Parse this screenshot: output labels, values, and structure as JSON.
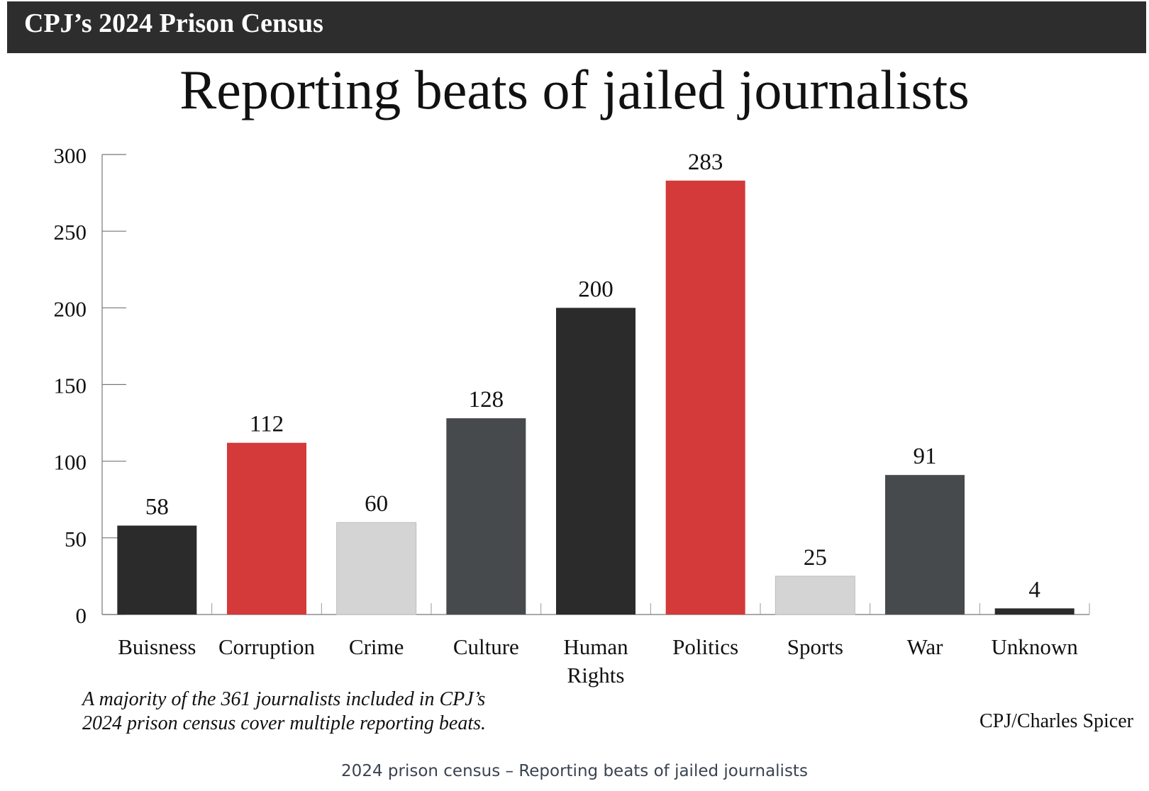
{
  "header": {
    "kicker": "CPJ’s 2024 Prison Census"
  },
  "chart_data": {
    "type": "bar",
    "title": "Reporting beats of jailed journalists",
    "categories": [
      [
        "Buisness"
      ],
      [
        "Corruption"
      ],
      [
        "Crime"
      ],
      [
        "Culture"
      ],
      [
        "Human",
        "Rights"
      ],
      [
        "Politics"
      ],
      [
        "Sports"
      ],
      [
        "War"
      ],
      [
        "Unknown"
      ]
    ],
    "values": [
      58,
      112,
      60,
      128,
      200,
      283,
      25,
      91,
      4
    ],
    "data_labels": [
      "58",
      "112",
      "60",
      "128",
      "200",
      "283",
      "25",
      "91",
      "4"
    ],
    "bar_colors": [
      "#2b2b2b",
      "#d43a3a",
      "#d4d4d4",
      "#474a4d",
      "#2b2b2b",
      "#d43a3a",
      "#d4d4d4",
      "#474a4d",
      "#2b2b2b"
    ],
    "ylim": [
      0,
      300
    ],
    "yticks": [
      0,
      50,
      100,
      150,
      200,
      250,
      300
    ],
    "xlabel": "",
    "ylabel": "",
    "grid": false,
    "legend": "none"
  },
  "note": {
    "lines": [
      "A majority of the 361 journalists included in CPJ’s",
      "2024 prison census cover multiple reporting beats."
    ]
  },
  "credit": "CPJ/Charles Spicer",
  "caption": "2024 prison census – Reporting beats of jailed journalists"
}
